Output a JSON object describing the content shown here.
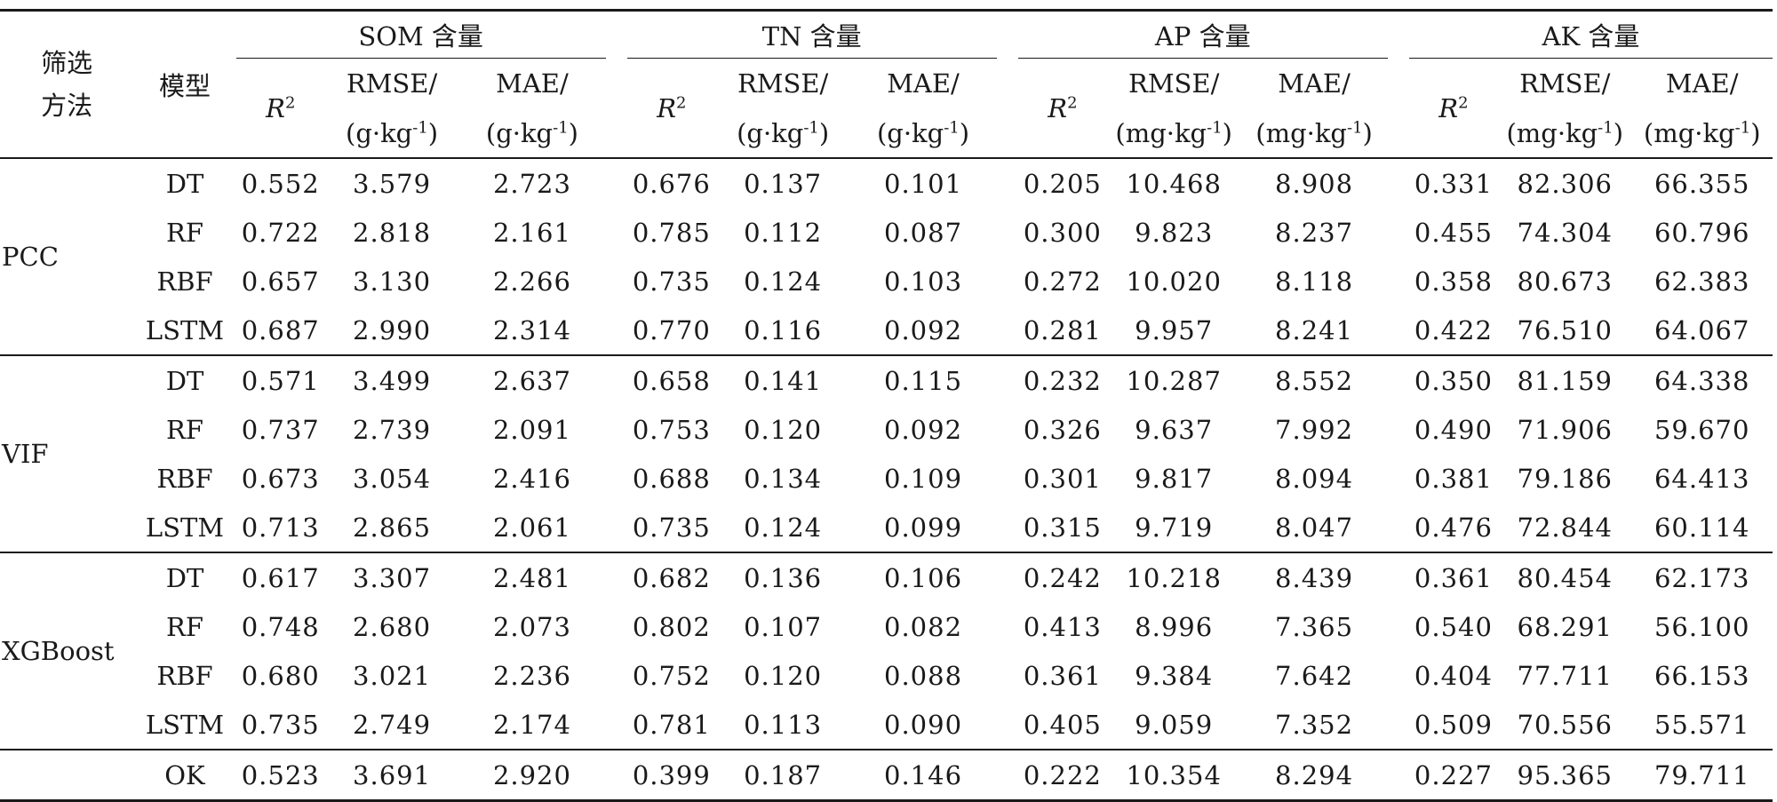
{
  "header": {
    "method_label_line1": "筛选",
    "method_label_line2": "方法",
    "model_label": "模型",
    "groups": [
      "SOM 含量",
      "TN 含量",
      "AP 含量",
      "AK 含量"
    ],
    "r2_label": "R",
    "r2_sup": "2",
    "rmse_label": "RMSE/",
    "mae_label": "MAE/",
    "unit_g": "(g·kg",
    "unit_mg": "(mg·kg",
    "unit_sup": "-1",
    "unit_close": ")"
  },
  "sections": [
    {
      "method": "PCC",
      "rows": [
        {
          "model": "DT",
          "values": [
            "0.552",
            "3.579",
            "2.723",
            "0.676",
            "0.137",
            "0.101",
            "0.205",
            "10.468",
            "8.908",
            "0.331",
            "82.306",
            "66.355"
          ]
        },
        {
          "model": "RF",
          "values": [
            "0.722",
            "2.818",
            "2.161",
            "0.785",
            "0.112",
            "0.087",
            "0.300",
            "9.823",
            "8.237",
            "0.455",
            "74.304",
            "60.796"
          ]
        },
        {
          "model": "RBF",
          "values": [
            "0.657",
            "3.130",
            "2.266",
            "0.735",
            "0.124",
            "0.103",
            "0.272",
            "10.020",
            "8.118",
            "0.358",
            "80.673",
            "62.383"
          ]
        },
        {
          "model": "LSTM",
          "values": [
            "0.687",
            "2.990",
            "2.314",
            "0.770",
            "0.116",
            "0.092",
            "0.281",
            "9.957",
            "8.241",
            "0.422",
            "76.510",
            "64.067"
          ]
        }
      ]
    },
    {
      "method": "VIF",
      "rows": [
        {
          "model": "DT",
          "values": [
            "0.571",
            "3.499",
            "2.637",
            "0.658",
            "0.141",
            "0.115",
            "0.232",
            "10.287",
            "8.552",
            "0.350",
            "81.159",
            "64.338"
          ]
        },
        {
          "model": "RF",
          "values": [
            "0.737",
            "2.739",
            "2.091",
            "0.753",
            "0.120",
            "0.092",
            "0.326",
            "9.637",
            "7.992",
            "0.490",
            "71.906",
            "59.670"
          ]
        },
        {
          "model": "RBF",
          "values": [
            "0.673",
            "3.054",
            "2.416",
            "0.688",
            "0.134",
            "0.109",
            "0.301",
            "9.817",
            "8.094",
            "0.381",
            "79.186",
            "64.413"
          ]
        },
        {
          "model": "LSTM",
          "values": [
            "0.713",
            "2.865",
            "2.061",
            "0.735",
            "0.124",
            "0.099",
            "0.315",
            "9.719",
            "8.047",
            "0.476",
            "72.844",
            "60.114"
          ]
        }
      ]
    },
    {
      "method": "XGBoost",
      "rows": [
        {
          "model": "DT",
          "values": [
            "0.617",
            "3.307",
            "2.481",
            "0.682",
            "0.136",
            "0.106",
            "0.242",
            "10.218",
            "8.439",
            "0.361",
            "80.454",
            "62.173"
          ]
        },
        {
          "model": "RF",
          "values": [
            "0.748",
            "2.680",
            "2.073",
            "0.802",
            "0.107",
            "0.082",
            "0.413",
            "8.996",
            "7.365",
            "0.540",
            "68.291",
            "56.100"
          ]
        },
        {
          "model": "RBF",
          "values": [
            "0.680",
            "3.021",
            "2.236",
            "0.752",
            "0.120",
            "0.088",
            "0.361",
            "9.384",
            "7.642",
            "0.404",
            "77.711",
            "66.153"
          ]
        },
        {
          "model": "LSTM",
          "values": [
            "0.735",
            "2.749",
            "2.174",
            "0.781",
            "0.113",
            "0.090",
            "0.405",
            "9.059",
            "7.352",
            "0.509",
            "70.556",
            "55.571"
          ]
        }
      ]
    },
    {
      "method": "",
      "rows": [
        {
          "model": "OK",
          "values": [
            "0.523",
            "3.691",
            "2.920",
            "0.399",
            "0.187",
            "0.146",
            "0.222",
            "10.354",
            "8.294",
            "0.227",
            "95.365",
            "79.711"
          ]
        }
      ]
    }
  ]
}
